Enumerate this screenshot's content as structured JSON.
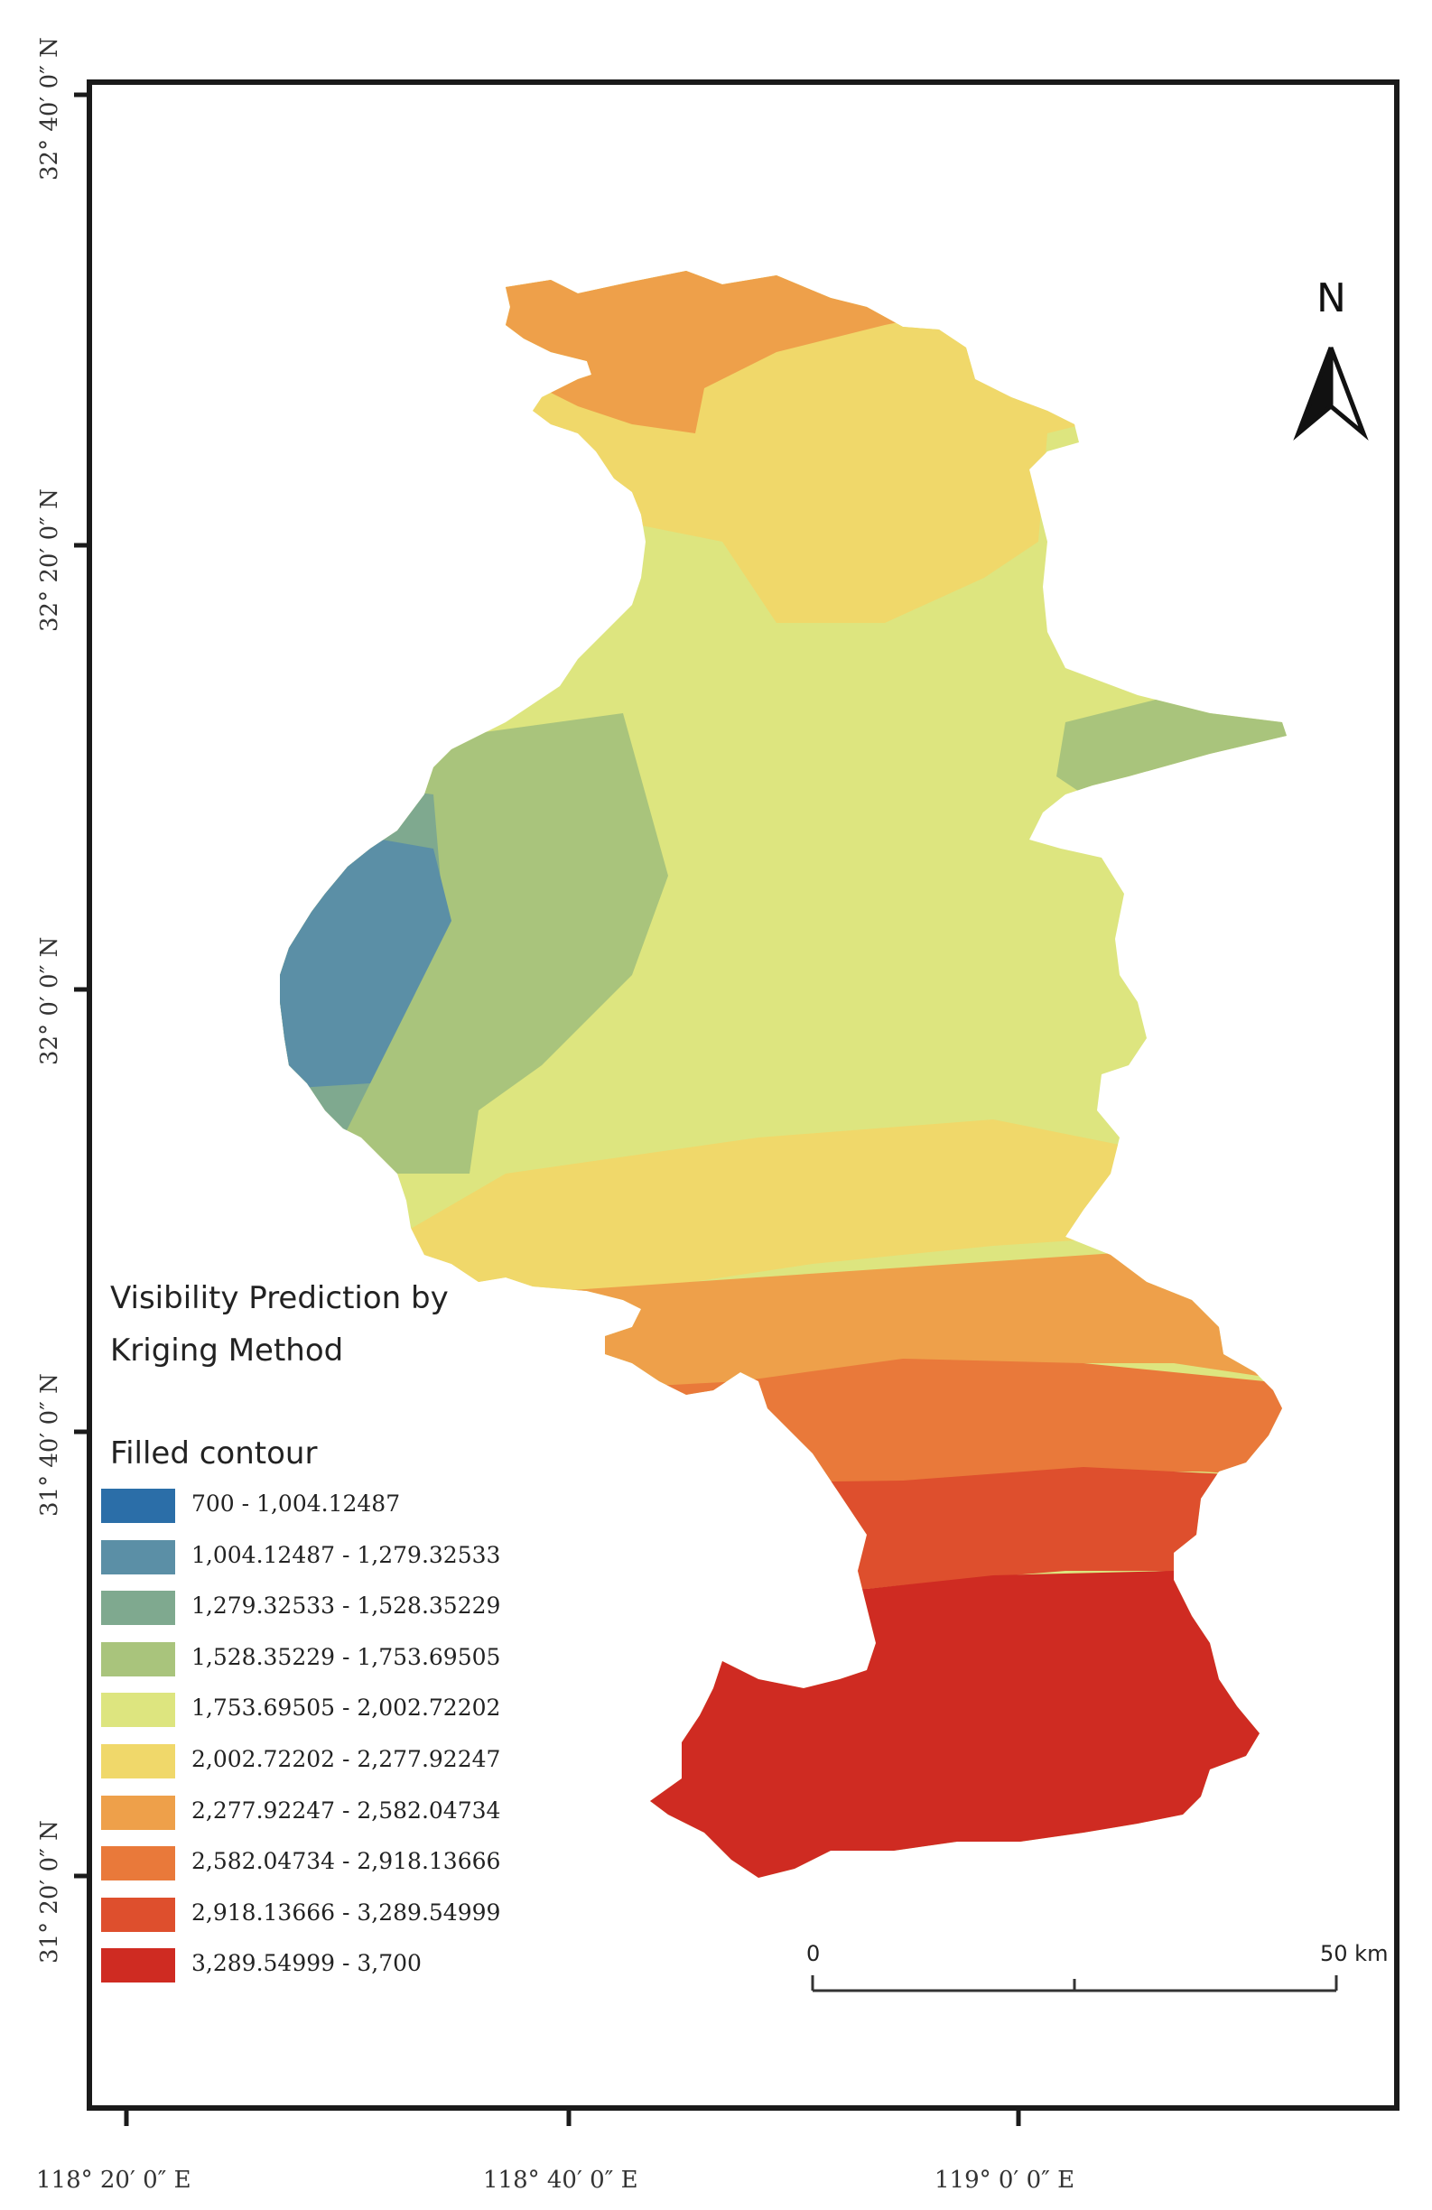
{
  "map": {
    "north_label": "N",
    "latitude_labels": [
      "32° 40′ 0″ N",
      "32° 20′ 0″ N",
      "32° 0′ 0″ N",
      "31° 40′ 0″ N",
      "31° 20′ 0″ N"
    ],
    "longitude_labels": [
      "118° 20′ 0″ E",
      "118° 40′ 0″ E",
      "119° 0′ 0″ E"
    ],
    "legend": {
      "title_line1": "Visibility Prediction by",
      "title_line2": "Kriging Method",
      "subtitle": "Filled contour",
      "classes": [
        {
          "label": "700 - 1,004.12487",
          "color": "#2b6ea8"
        },
        {
          "label": "1,004.12487 - 1,279.32533",
          "color": "#5b8fa6"
        },
        {
          "label": "1,279.32533 - 1,528.35229",
          "color": "#7fa98f"
        },
        {
          "label": "1,528.35229 - 1,753.69505",
          "color": "#a9c47c"
        },
        {
          "label": "1,753.69505 - 2,002.72202",
          "color": "#dde57f"
        },
        {
          "label": "2,002.72202 - 2,277.92247",
          "color": "#f0d86a"
        },
        {
          "label": "2,277.92247 - 2,582.04734",
          "color": "#eea04a"
        },
        {
          "label": "2,582.04734 - 2,918.13666",
          "color": "#e9793a"
        },
        {
          "label": "2,918.13666 - 3,289.54999",
          "color": "#de4f2d"
        },
        {
          "label": "3,289.54999 - 3,700",
          "color": "#cf2b22"
        }
      ]
    },
    "scale_bar": {
      "start_label": "0",
      "end_label": "50 km"
    }
  }
}
